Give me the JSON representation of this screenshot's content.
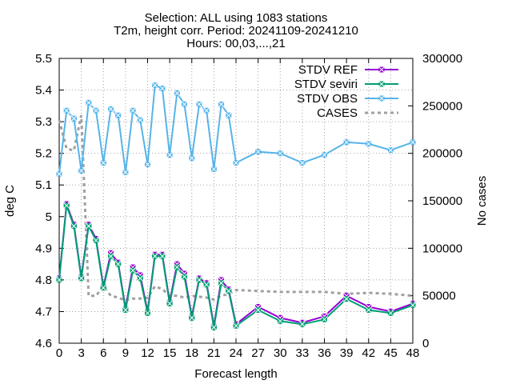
{
  "chart_data": {
    "type": "line",
    "title_lines": [
      "Selection: ALL using  1083 stations",
      "T2m, height corr.   Period: 20241109-20241210",
      "Hours: 00,03,...,21"
    ],
    "xlabel": "Forecast length",
    "ylabel": "deg C",
    "y2label": "No cases",
    "xlim": [
      0,
      48
    ],
    "ylim": [
      4.6,
      5.5
    ],
    "y2lim": [
      0,
      300000
    ],
    "x_ticks": [
      0,
      3,
      6,
      9,
      12,
      15,
      18,
      21,
      24,
      27,
      30,
      33,
      36,
      39,
      42,
      45,
      48
    ],
    "x_tick_labels": [
      "0",
      "3",
      "6",
      "9",
      "12",
      "15",
      "18",
      "21",
      "24",
      "27",
      "30",
      "33",
      "36",
      "39",
      "42",
      "45",
      "48"
    ],
    "y_ticks": [
      4.6,
      4.7,
      4.8,
      4.9,
      5,
      5.1,
      5.2,
      5.3,
      5.4,
      5.5
    ],
    "y_tick_labels": [
      "4.6",
      "4.7",
      "4.8",
      "4.9",
      "5",
      "5.1",
      "5.2",
      "5.3",
      "5.4",
      "5.5"
    ],
    "y2_ticks": [
      0,
      50000,
      100000,
      150000,
      200000,
      250000,
      300000
    ],
    "y2_tick_labels": [
      "0",
      "50000",
      "100000",
      "150000",
      "200000",
      "250000",
      "300000"
    ],
    "grid": true,
    "legend_position": "top-right",
    "series": [
      {
        "name": "STDV REF",
        "color": "#9400d3",
        "marker": "square-x",
        "x": [
          0,
          1,
          2,
          3,
          4,
          5,
          6,
          7,
          8,
          9,
          10,
          11,
          12,
          13,
          14,
          15,
          16,
          17,
          18,
          19,
          20,
          21,
          22,
          23,
          24,
          27,
          30,
          33,
          36,
          39,
          42,
          45,
          48
        ],
        "values": [
          4.805,
          5.04,
          4.975,
          4.81,
          4.975,
          4.93,
          4.78,
          4.885,
          4.855,
          4.71,
          4.84,
          4.815,
          4.7,
          4.88,
          4.88,
          4.73,
          4.85,
          4.82,
          4.685,
          4.805,
          4.79,
          4.655,
          4.8,
          4.77,
          4.66,
          4.715,
          4.68,
          4.665,
          4.685,
          4.75,
          4.715,
          4.7,
          4.725
        ]
      },
      {
        "name": "STDV seviri",
        "color": "#009e73",
        "marker": "square-x",
        "x": [
          0,
          1,
          2,
          3,
          4,
          5,
          6,
          7,
          8,
          9,
          10,
          11,
          12,
          13,
          14,
          15,
          16,
          17,
          18,
          19,
          20,
          21,
          22,
          23,
          24,
          27,
          30,
          33,
          36,
          39,
          42,
          45,
          48
        ],
        "values": [
          4.8,
          5.035,
          4.97,
          4.805,
          4.97,
          4.925,
          4.775,
          4.875,
          4.85,
          4.705,
          4.83,
          4.805,
          4.695,
          4.875,
          4.875,
          4.725,
          4.84,
          4.81,
          4.68,
          4.8,
          4.785,
          4.65,
          4.79,
          4.765,
          4.655,
          4.705,
          4.67,
          4.66,
          4.675,
          4.74,
          4.705,
          4.695,
          4.72
        ]
      },
      {
        "name": "STDV OBS",
        "color": "#56b4e9",
        "marker": "square-x",
        "x": [
          0,
          1,
          2,
          3,
          4,
          5,
          6,
          7,
          8,
          9,
          10,
          11,
          12,
          13,
          14,
          15,
          16,
          17,
          18,
          19,
          20,
          21,
          22,
          23,
          24,
          27,
          30,
          33,
          36,
          39,
          42,
          45,
          48
        ],
        "values": [
          5.135,
          5.335,
          5.31,
          5.145,
          5.36,
          5.335,
          5.17,
          5.34,
          5.32,
          5.14,
          5.335,
          5.305,
          5.165,
          5.415,
          5.405,
          5.195,
          5.39,
          5.355,
          5.185,
          5.355,
          5.335,
          5.15,
          5.355,
          5.32,
          5.17,
          5.205,
          5.2,
          5.17,
          5.195,
          5.235,
          5.23,
          5.21,
          5.235
        ]
      },
      {
        "name": "CASES",
        "color": "#a0a0a0",
        "axis": "y2",
        "dashed": true,
        "x": [
          0,
          1,
          2,
          3,
          4,
          5,
          6,
          7,
          8,
          9,
          10,
          11,
          12,
          13,
          14,
          15,
          16,
          17,
          18,
          19,
          20,
          21,
          22,
          23,
          24,
          27,
          30,
          33,
          36,
          39,
          42,
          45,
          48
        ],
        "values": [
          235000,
          205000,
          203000,
          240000,
          50000,
          50000,
          60000,
          50000,
          48000,
          45000,
          47000,
          47000,
          48000,
          60000,
          57000,
          50000,
          50000,
          48000,
          50000,
          49000,
          48000,
          46000,
          50000,
          52000,
          56000,
          55000,
          54000,
          54000,
          54000,
          52000,
          53000,
          52000,
          50000
        ]
      }
    ]
  }
}
